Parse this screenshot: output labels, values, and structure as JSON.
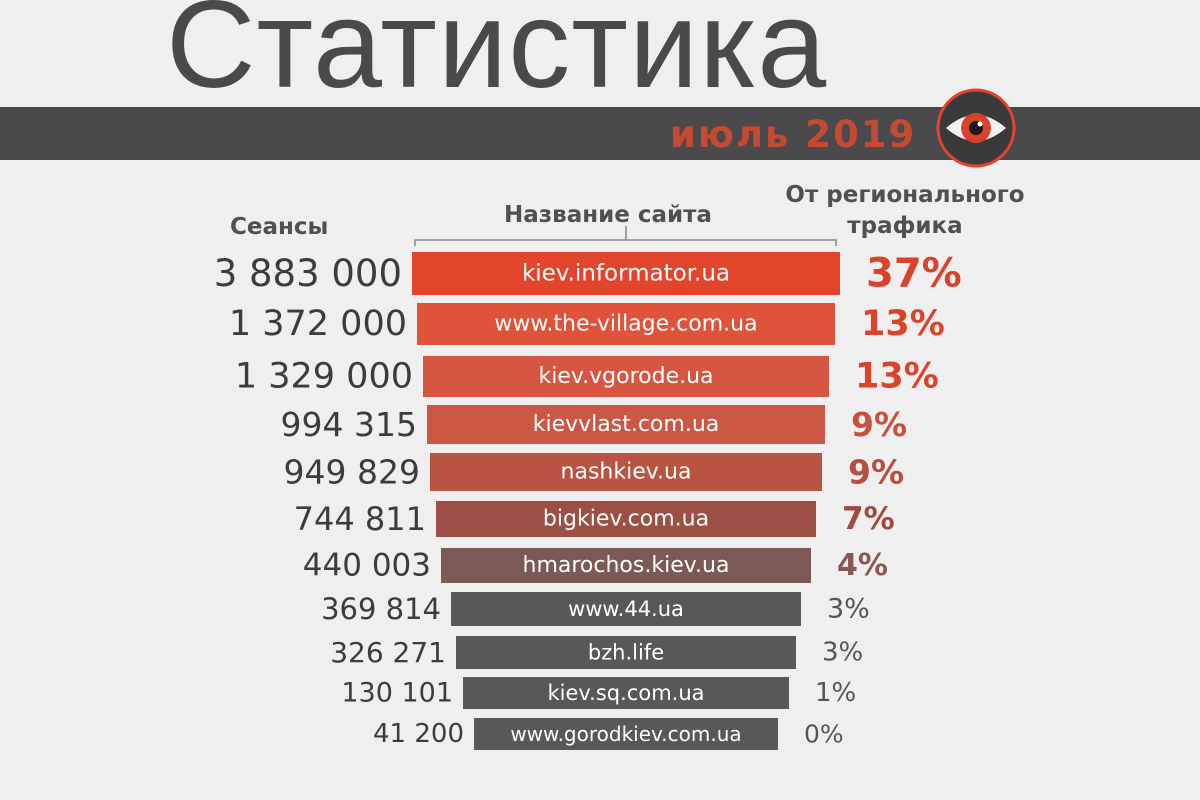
{
  "header": {
    "title": "Статистика",
    "subtitle": "июль 2019"
  },
  "columns": {
    "sessions": "Сеансы",
    "site": "Название сайта",
    "share_line1": "От регионального",
    "share_line2": "трафика"
  },
  "colors": {
    "accent": "#d9432a",
    "band": "#4a4a4c",
    "background": "#efefef",
    "gray_bar": "#58585a"
  },
  "logo": {
    "icon": "eye-icon"
  },
  "chart_data": {
    "type": "bar",
    "orientation": "horizontal",
    "categories": [
      "kiev.informator.ua",
      "www.the-village.com.ua",
      "kiev.vgorode.ua",
      "kievvlast.com.ua",
      "nashkiev.ua",
      "bigkiev.com.ua",
      "hmarochos.kiev.ua",
      "www.44.ua",
      "bzh.life",
      "kiev.sq.com.ua",
      "www.gorodkiev.com.ua"
    ],
    "sessions": [
      3883000,
      1372000,
      1329000,
      994315,
      949829,
      744811,
      440003,
      369814,
      326271,
      130101,
      41200
    ],
    "sessions_labels": [
      "3 883 000",
      "1 372 000",
      "1 329 000",
      "994 315",
      "949 829",
      "744 811",
      "440 003",
      "369 814",
      "326 271",
      "130 101",
      "41 200"
    ],
    "share_percent": [
      37,
      13,
      13,
      9,
      9,
      7,
      4,
      3,
      3,
      1,
      0
    ],
    "share_labels": [
      "37%",
      "13%",
      "13%",
      "9%",
      "9%",
      "7%",
      "4%",
      "3%",
      "3%",
      "1%",
      "0%"
    ],
    "bar_colors": [
      "#e2452b",
      "#df533a",
      "#d65642",
      "#ca5845",
      "#b95443",
      "#9e4f45",
      "#7b5954",
      "#58585a",
      "#58585a",
      "#58585a",
      "#58585a"
    ],
    "share_colors": [
      "#d9432a",
      "#d9432a",
      "#d9432a",
      "#c8503e",
      "#b55040",
      "#a0493e",
      "#8a5650",
      "#555555",
      "#555555",
      "#555555",
      "#555555"
    ]
  }
}
